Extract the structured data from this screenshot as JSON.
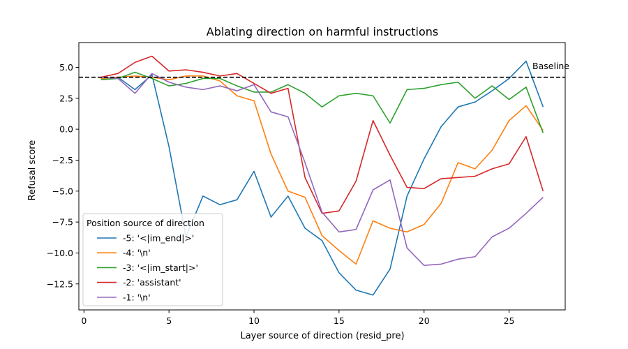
{
  "chart_data": {
    "type": "line",
    "title": "Ablating direction on harmful instructions",
    "xlabel": "Layer source of direction (resid_pre)",
    "ylabel": "Refusal score",
    "xlim": [
      -0.3,
      28.3
    ],
    "ylim": [
      -14.6,
      7.0
    ],
    "xticks": [
      0,
      5,
      10,
      15,
      20,
      25
    ],
    "yticks": [
      5.0,
      2.5,
      0.0,
      -2.5,
      -5.0,
      -7.5,
      -10.0,
      -12.5
    ],
    "ytick_labels": [
      "5.0",
      "2.5",
      "0.0",
      "−2.5",
      "−5.0",
      "−7.5",
      "−10.0",
      "−12.5"
    ],
    "grid": false,
    "baseline": {
      "y": 4.2,
      "label": "Baseline",
      "style": "dashed",
      "color": "#000000"
    },
    "legend": {
      "title": "Position source of direction",
      "placement": "lower-left"
    },
    "x": [
      1,
      2,
      3,
      4,
      5,
      6,
      7,
      8,
      9,
      10,
      11,
      12,
      13,
      14,
      15,
      16,
      17,
      18,
      19,
      20,
      21,
      22,
      23,
      24,
      25,
      26,
      27
    ],
    "series": [
      {
        "name": "-5: '<|im_end|>'",
        "color": "#1f77b4",
        "values": [
          4.1,
          4.2,
          3.2,
          4.4,
          -1.4,
          -8.7,
          -5.4,
          -6.1,
          -5.7,
          -3.4,
          -7.1,
          -5.4,
          -8.0,
          -9.0,
          -11.6,
          -13.0,
          -13.4,
          -11.3,
          -5.4,
          -2.4,
          0.2,
          1.8,
          2.2,
          3.1,
          4.1,
          5.5,
          1.8
        ]
      },
      {
        "name": "-4: '\\n'",
        "color": "#ff7f0e",
        "values": [
          4.1,
          4.2,
          4.3,
          4.2,
          4.0,
          4.3,
          4.3,
          3.9,
          2.7,
          2.3,
          -2.0,
          -5.0,
          -5.5,
          -8.6,
          -9.8,
          -10.9,
          -7.4,
          -8.0,
          -8.3,
          -7.7,
          -6.0,
          -2.7,
          -3.2,
          -1.7,
          0.7,
          1.9,
          -0.1
        ]
      },
      {
        "name": "-3: '<|im_start|>'",
        "color": "#2ca02c",
        "values": [
          4.0,
          4.1,
          4.6,
          4.1,
          3.5,
          3.7,
          4.1,
          4.1,
          3.5,
          3.0,
          3.0,
          3.6,
          2.9,
          1.8,
          2.7,
          2.9,
          2.7,
          0.5,
          3.2,
          3.3,
          3.6,
          3.8,
          2.5,
          3.5,
          2.4,
          3.4,
          -0.3
        ]
      },
      {
        "name": "-2: 'assistant'",
        "color": "#d62728",
        "values": [
          4.2,
          4.5,
          5.4,
          5.9,
          4.7,
          4.8,
          4.6,
          4.3,
          4.5,
          3.7,
          2.9,
          3.3,
          -3.9,
          -6.8,
          -6.6,
          -4.2,
          0.7,
          -2.1,
          -4.7,
          -4.8,
          -4.0,
          -3.9,
          -3.8,
          -3.2,
          -2.8,
          -0.6,
          -5.0
        ]
      },
      {
        "name": "-1: '\\n'",
        "color": "#9467bd",
        "values": [
          4.2,
          4.1,
          2.9,
          4.5,
          3.8,
          3.4,
          3.2,
          3.5,
          3.1,
          3.6,
          1.4,
          1.0,
          -2.7,
          -6.7,
          -8.3,
          -8.1,
          -4.9,
          -4.1,
          -9.6,
          -11.0,
          -10.9,
          -10.5,
          -10.3,
          -8.7,
          -8.0,
          -6.8,
          -5.5
        ]
      }
    ]
  }
}
